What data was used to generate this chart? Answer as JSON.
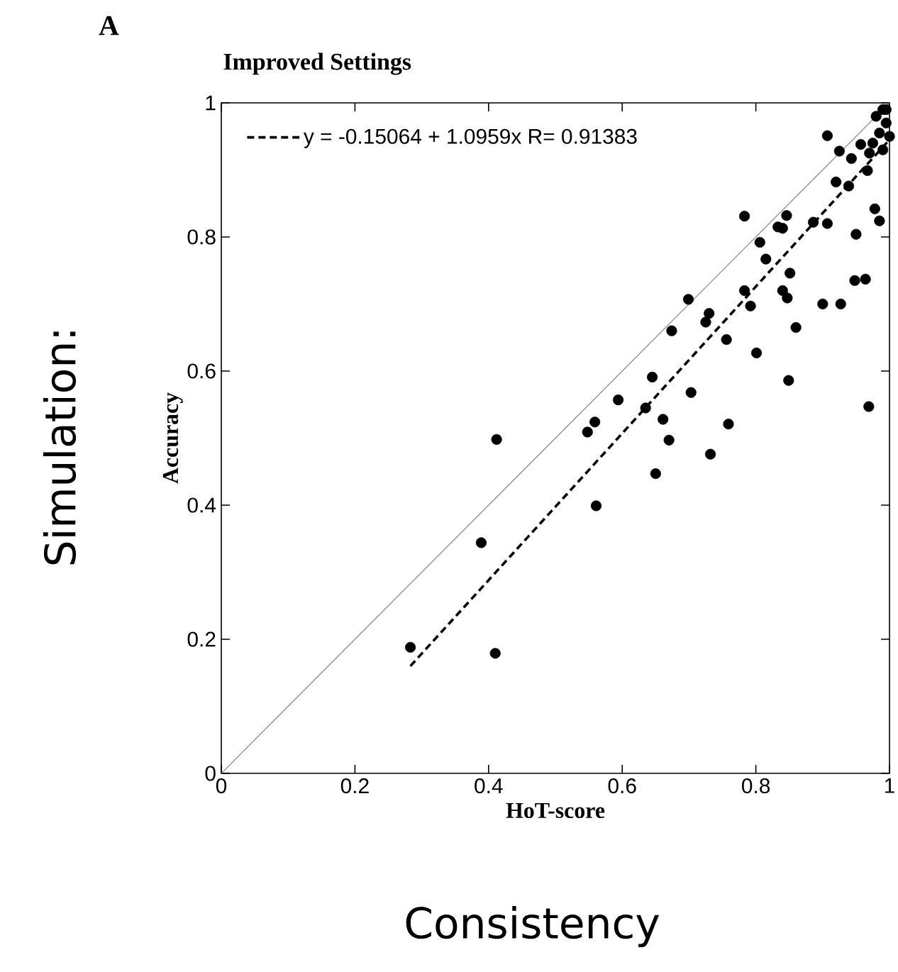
{
  "chart_data": {
    "type": "scatter",
    "title": "Improved Settings",
    "xlabel": "HoT-score",
    "ylabel": "Accuracy",
    "annotations": [
      "A",
      "Simulation:",
      "Consistency"
    ],
    "xlim": [
      0,
      1
    ],
    "ylim": [
      0,
      1
    ],
    "xticks": [
      0,
      0.2,
      0.4,
      0.6,
      0.8,
      1
    ],
    "yticks": [
      0,
      0.2,
      0.4,
      0.6,
      0.8,
      1
    ],
    "legend": "top left",
    "series": [
      {
        "marker": "circle",
        "color": "#000000",
        "x": [
          0.907,
          0.925,
          0.943,
          0.957,
          0.92,
          0.939,
          0.967,
          0.783,
          0.846,
          0.833,
          0.84,
          0.886,
          0.907,
          0.978,
          0.985,
          0.95,
          0.806,
          0.815,
          0.851,
          0.783,
          0.792,
          0.84,
          0.847,
          0.9,
          0.927,
          0.948,
          0.964,
          0.699,
          0.73,
          0.725,
          0.674,
          0.756,
          0.801,
          0.86,
          0.849,
          0.969,
          0.645,
          0.594,
          0.703,
          0.635,
          0.661,
          0.559,
          0.548,
          0.67,
          0.759,
          0.732,
          0.65,
          0.412,
          0.561,
          0.389,
          0.283,
          0.41,
          0.99,
          0.98,
          0.995,
          0.985,
          0.975,
          0.99,
          1.0,
          0.97,
          0.995
        ],
        "values": [
          0.951,
          0.928,
          0.917,
          0.938,
          0.882,
          0.876,
          0.899,
          0.831,
          0.832,
          0.815,
          0.813,
          0.822,
          0.82,
          0.842,
          0.824,
          0.804,
          0.792,
          0.767,
          0.746,
          0.72,
          0.697,
          0.72,
          0.709,
          0.7,
          0.7,
          0.735,
          0.737,
          0.707,
          0.686,
          0.673,
          0.66,
          0.647,
          0.627,
          0.665,
          0.586,
          0.547,
          0.591,
          0.557,
          0.568,
          0.545,
          0.528,
          0.524,
          0.509,
          0.497,
          0.521,
          0.476,
          0.447,
          0.498,
          0.399,
          0.344,
          0.188,
          0.179,
          0.99,
          0.98,
          0.97,
          0.955,
          0.94,
          0.93,
          0.95,
          0.925,
          0.99
        ]
      },
      {
        "type": "line",
        "name": "y = -0.15064 + 1.0959x   R= 0.91383",
        "color": "#000000",
        "line_style": "dashed",
        "marker": "none",
        "x": [
          0.283,
          1
        ],
        "values": [
          0.16,
          0.945
        ]
      },
      {
        "type": "line",
        "color": "#808080",
        "line_style": "solid",
        "marker": "none",
        "x": [
          0,
          1
        ],
        "values": [
          0,
          1
        ]
      }
    ]
  }
}
